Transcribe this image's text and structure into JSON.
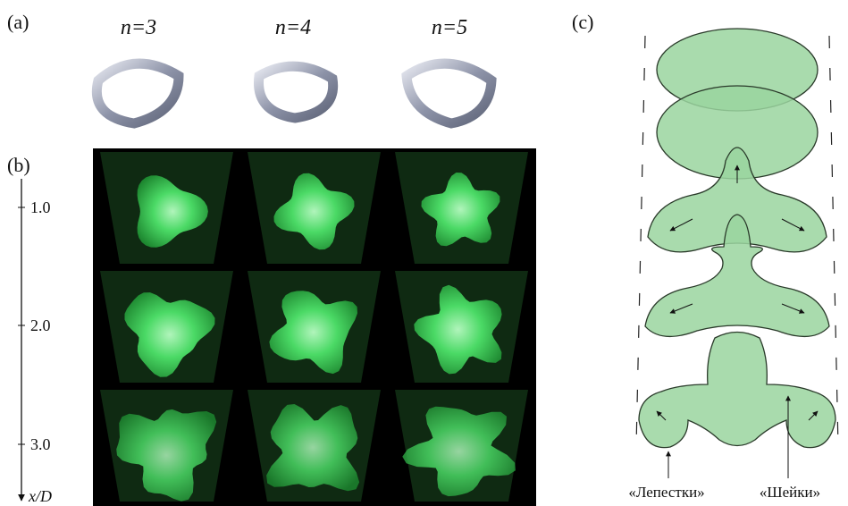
{
  "panel_a": {
    "label": "(a)",
    "columns": [
      "n=3",
      "n=4",
      "n=5"
    ]
  },
  "panel_b": {
    "label": "(b)",
    "axis": {
      "ticks": [
        "1.0",
        "2.0",
        "3.0"
      ],
      "title": "x/D"
    }
  },
  "panel_c": {
    "label": "(c)",
    "annotations": [
      "«Лепестки»",
      "«Шейки»"
    ]
  }
}
